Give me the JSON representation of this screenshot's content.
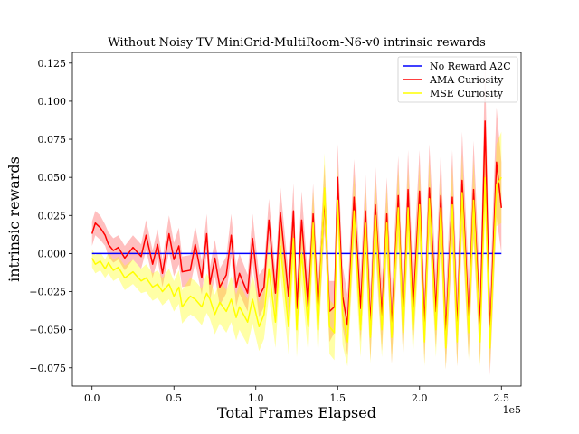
{
  "chart_data": {
    "type": "line",
    "title": "Without Noisy TV MiniGrid-MultiRoom-N6-v0 intrinsic rewards",
    "xlabel": "Total Frames Elapsed",
    "ylabel": "intrinsic rewards",
    "x_offset_label": "1e5",
    "xlim": [
      -0.12,
      2.62
    ],
    "ylim": [
      -0.087,
      0.132
    ],
    "xticks": [
      0.0,
      0.5,
      1.0,
      1.5,
      2.0,
      2.5
    ],
    "xtick_labels": [
      "0.0",
      "0.5",
      "1.0",
      "1.5",
      "2.0",
      "2.5"
    ],
    "yticks": [
      -0.075,
      -0.05,
      -0.025,
      0.0,
      0.025,
      0.05,
      0.075,
      0.1,
      0.125
    ],
    "ytick_labels": [
      "−0.075",
      "−0.050",
      "−0.025",
      "0.000",
      "0.025",
      "0.050",
      "0.075",
      "0.100",
      "0.125"
    ],
    "legend_position": "top-right",
    "grid": false,
    "series": [
      {
        "name": "No Reward A2C",
        "color": "#0000ff",
        "x": [
          0.0,
          2.5
        ],
        "y": [
          0.0,
          0.0
        ]
      },
      {
        "name": "AMA Curiosity",
        "color": "#ff0000",
        "band_color": "#ff0000",
        "x": [
          0.0,
          0.02,
          0.05,
          0.08,
          0.1,
          0.13,
          0.16,
          0.2,
          0.25,
          0.3,
          0.33,
          0.37,
          0.4,
          0.43,
          0.47,
          0.5,
          0.53,
          0.55,
          0.6,
          0.63,
          0.67,
          0.7,
          0.72,
          0.75,
          0.78,
          0.82,
          0.85,
          0.88,
          0.9,
          0.95,
          0.98,
          1.02,
          1.05,
          1.08,
          1.12,
          1.15,
          1.2,
          1.23,
          1.25,
          1.28,
          1.32,
          1.35,
          1.38,
          1.42,
          1.45,
          1.48,
          1.5,
          1.53,
          1.56,
          1.6,
          1.64,
          1.67,
          1.7,
          1.73,
          1.77,
          1.8,
          1.83,
          1.87,
          1.9,
          1.93,
          1.96,
          2.0,
          2.03,
          2.06,
          2.1,
          2.13,
          2.16,
          2.2,
          2.23,
          2.26,
          2.3,
          2.33,
          2.37,
          2.4,
          2.43,
          2.47,
          2.5
        ],
        "y": [
          0.013,
          0.02,
          0.017,
          0.012,
          0.006,
          0.002,
          0.004,
          -0.003,
          0.004,
          -0.002,
          0.012,
          -0.007,
          0.006,
          -0.013,
          0.013,
          -0.004,
          0.005,
          -0.012,
          -0.011,
          0.006,
          -0.016,
          0.013,
          -0.02,
          -0.003,
          -0.022,
          -0.014,
          0.012,
          -0.022,
          -0.013,
          -0.026,
          0.01,
          -0.028,
          -0.022,
          0.022,
          -0.026,
          0.027,
          -0.028,
          0.028,
          -0.036,
          0.022,
          -0.035,
          0.026,
          -0.038,
          0.037,
          -0.038,
          -0.035,
          0.05,
          -0.028,
          -0.047,
          0.037,
          -0.036,
          0.028,
          -0.047,
          0.032,
          -0.041,
          0.026,
          -0.048,
          0.038,
          -0.047,
          0.042,
          -0.038,
          0.041,
          -0.048,
          0.043,
          -0.038,
          0.038,
          -0.052,
          0.037,
          -0.049,
          0.048,
          -0.042,
          0.042,
          -0.047,
          0.087,
          -0.054,
          0.06,
          0.03
        ],
        "band_lower": [
          0.005,
          0.012,
          0.009,
          0.005,
          -0.002,
          -0.006,
          -0.004,
          -0.011,
          -0.004,
          -0.01,
          0.002,
          -0.016,
          -0.004,
          -0.022,
          0.001,
          -0.015,
          -0.007,
          -0.022,
          -0.021,
          -0.006,
          -0.027,
          0.0,
          -0.031,
          -0.015,
          -0.034,
          -0.026,
          -0.002,
          -0.035,
          -0.026,
          -0.038,
          -0.006,
          -0.042,
          -0.035,
          0.008,
          -0.04,
          0.01,
          -0.043,
          0.01,
          -0.052,
          0.003,
          -0.052,
          0.006,
          -0.056,
          0.015,
          -0.058,
          -0.052,
          0.028,
          -0.048,
          -0.067,
          0.012,
          -0.058,
          0.004,
          -0.07,
          0.006,
          -0.064,
          0.002,
          -0.072,
          0.012,
          -0.07,
          0.016,
          -0.062,
          0.014,
          -0.072,
          0.014,
          -0.062,
          0.008,
          -0.076,
          0.006,
          -0.074,
          0.016,
          -0.068,
          0.01,
          -0.072,
          0.05,
          -0.08,
          0.024,
          0.0
        ],
        "band_upper": [
          0.021,
          0.028,
          0.025,
          0.019,
          0.014,
          0.01,
          0.012,
          0.005,
          0.012,
          0.006,
          0.022,
          0.002,
          0.016,
          -0.004,
          0.025,
          0.007,
          0.017,
          -0.002,
          -0.001,
          0.018,
          -0.005,
          0.026,
          -0.009,
          0.009,
          -0.01,
          -0.002,
          0.026,
          -0.009,
          0.0,
          -0.014,
          0.026,
          -0.014,
          -0.009,
          0.036,
          -0.012,
          0.044,
          -0.013,
          0.046,
          -0.02,
          0.041,
          -0.018,
          0.046,
          -0.02,
          0.059,
          -0.018,
          -0.018,
          0.072,
          -0.008,
          -0.027,
          0.062,
          -0.014,
          0.052,
          -0.024,
          0.058,
          -0.018,
          0.05,
          -0.024,
          0.064,
          -0.024,
          0.068,
          -0.014,
          0.068,
          -0.024,
          0.072,
          -0.014,
          0.068,
          -0.028,
          0.068,
          -0.024,
          0.08,
          -0.016,
          0.074,
          -0.022,
          0.124,
          -0.028,
          0.096,
          0.06
        ]
      },
      {
        "name": "MSE Curiosity",
        "color": "#ffff00",
        "band_color": "#ffff00",
        "x": [
          0.0,
          0.02,
          0.05,
          0.08,
          0.1,
          0.13,
          0.16,
          0.2,
          0.25,
          0.3,
          0.33,
          0.37,
          0.4,
          0.43,
          0.47,
          0.5,
          0.53,
          0.55,
          0.6,
          0.63,
          0.67,
          0.7,
          0.72,
          0.75,
          0.78,
          0.82,
          0.85,
          0.88,
          0.9,
          0.95,
          0.98,
          1.02,
          1.05,
          1.08,
          1.12,
          1.15,
          1.2,
          1.23,
          1.25,
          1.28,
          1.32,
          1.35,
          1.38,
          1.42,
          1.45,
          1.48,
          1.5,
          1.53,
          1.56,
          1.6,
          1.64,
          1.67,
          1.7,
          1.73,
          1.77,
          1.8,
          1.83,
          1.87,
          1.9,
          1.93,
          1.96,
          2.0,
          2.03,
          2.06,
          2.1,
          2.13,
          2.16,
          2.2,
          2.23,
          2.26,
          2.3,
          2.33,
          2.37,
          2.4,
          2.43,
          2.47,
          2.5
        ],
        "y": [
          -0.003,
          -0.007,
          -0.005,
          -0.01,
          -0.006,
          -0.011,
          -0.009,
          -0.016,
          -0.012,
          -0.018,
          -0.016,
          -0.022,
          -0.02,
          -0.025,
          -0.02,
          -0.028,
          -0.022,
          -0.035,
          -0.028,
          -0.03,
          -0.035,
          -0.026,
          -0.03,
          -0.04,
          -0.032,
          -0.038,
          -0.03,
          -0.042,
          -0.035,
          -0.045,
          -0.03,
          -0.048,
          -0.04,
          -0.01,
          -0.045,
          0.005,
          -0.048,
          0.01,
          -0.05,
          0.0,
          -0.048,
          0.02,
          -0.05,
          0.043,
          -0.048,
          -0.052,
          0.035,
          -0.04,
          -0.058,
          0.028,
          -0.05,
          0.02,
          -0.055,
          0.025,
          -0.05,
          0.02,
          -0.055,
          0.03,
          -0.052,
          0.03,
          -0.05,
          0.032,
          -0.058,
          0.036,
          -0.05,
          0.03,
          -0.062,
          0.032,
          -0.058,
          0.04,
          -0.052,
          0.035,
          -0.058,
          0.05,
          -0.062,
          0.045,
          0.05
        ],
        "band_lower": [
          -0.009,
          -0.013,
          -0.011,
          -0.016,
          -0.013,
          -0.018,
          -0.016,
          -0.024,
          -0.02,
          -0.026,
          -0.025,
          -0.031,
          -0.029,
          -0.034,
          -0.03,
          -0.038,
          -0.033,
          -0.046,
          -0.04,
          -0.042,
          -0.047,
          -0.039,
          -0.043,
          -0.053,
          -0.046,
          -0.052,
          -0.045,
          -0.057,
          -0.05,
          -0.06,
          -0.046,
          -0.064,
          -0.056,
          -0.028,
          -0.062,
          -0.014,
          -0.066,
          -0.01,
          -0.068,
          -0.02,
          -0.066,
          -0.002,
          -0.068,
          0.02,
          -0.066,
          -0.07,
          0.012,
          -0.06,
          -0.074,
          0.004,
          -0.068,
          -0.004,
          -0.072,
          0.0,
          -0.068,
          -0.004,
          -0.072,
          0.004,
          -0.07,
          0.004,
          -0.068,
          0.006,
          -0.074,
          0.01,
          -0.068,
          0.004,
          -0.076,
          0.006,
          -0.074,
          0.014,
          -0.07,
          0.008,
          -0.074,
          0.022,
          -0.076,
          0.018,
          0.02
        ],
        "band_upper": [
          0.003,
          -0.001,
          0.001,
          -0.004,
          0.001,
          -0.004,
          -0.002,
          -0.008,
          -0.004,
          -0.01,
          -0.007,
          -0.013,
          -0.011,
          -0.016,
          -0.01,
          -0.018,
          -0.011,
          -0.024,
          -0.016,
          -0.018,
          -0.023,
          -0.013,
          -0.017,
          -0.027,
          -0.018,
          -0.024,
          -0.015,
          -0.027,
          -0.02,
          -0.03,
          -0.014,
          -0.032,
          -0.024,
          0.008,
          -0.028,
          0.024,
          -0.03,
          0.03,
          -0.032,
          0.02,
          -0.03,
          0.042,
          -0.032,
          0.066,
          -0.03,
          -0.034,
          0.058,
          -0.02,
          -0.042,
          0.052,
          -0.032,
          0.044,
          -0.038,
          0.05,
          -0.032,
          0.044,
          -0.038,
          0.056,
          -0.034,
          0.056,
          -0.032,
          0.058,
          -0.042,
          0.062,
          -0.032,
          0.056,
          -0.048,
          0.058,
          -0.042,
          0.066,
          -0.034,
          0.062,
          -0.042,
          0.078,
          -0.048,
          0.072,
          0.08
        ]
      }
    ]
  }
}
